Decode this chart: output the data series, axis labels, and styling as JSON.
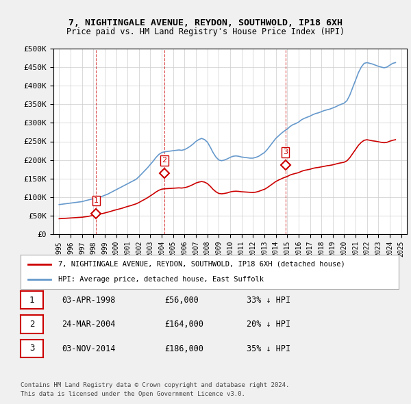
{
  "title1": "7, NIGHTINGALE AVENUE, REYDON, SOUTHWOLD, IP18 6XH",
  "title2": "Price paid vs. HM Land Registry's House Price Index (HPI)",
  "legend_label1": "7, NIGHTINGALE AVENUE, REYDON, SOUTHWOLD, IP18 6XH (detached house)",
  "legend_label2": "HPI: Average price, detached house, East Suffolk",
  "footer1": "Contains HM Land Registry data © Crown copyright and database right 2024.",
  "footer2": "This data is licensed under the Open Government Licence v3.0.",
  "sale_color": "#cc0000",
  "hpi_color": "#6699cc",
  "background_color": "#f0f0f0",
  "plot_bg_color": "#ffffff",
  "sales": [
    {
      "label": "1",
      "date": "03-APR-1998",
      "price": 56000,
      "x": 1998.25
    },
    {
      "label": "2",
      "date": "24-MAR-2004",
      "price": 164000,
      "x": 2004.23
    },
    {
      "label": "3",
      "date": "03-NOV-2014",
      "price": 186000,
      "x": 2014.84
    }
  ],
  "sale_annotations": [
    {
      "label": "1",
      "date": "03-APR-1998",
      "price": "£56,000",
      "pct": "33% ↓ HPI"
    },
    {
      "label": "2",
      "date": "24-MAR-2004",
      "price": "£164,000",
      "pct": "20% ↓ HPI"
    },
    {
      "label": "3",
      "date": "03-NOV-2014",
      "price": "£186,000",
      "pct": "35% ↓ HPI"
    }
  ],
  "ylim": [
    0,
    500000
  ],
  "yticks": [
    0,
    50000,
    100000,
    150000,
    200000,
    250000,
    300000,
    350000,
    400000,
    450000,
    500000
  ],
  "ytick_labels": [
    "£0",
    "£50K",
    "£100K",
    "£150K",
    "£200K",
    "£250K",
    "£300K",
    "£350K",
    "£400K",
    "£450K",
    "£500K"
  ],
  "xlim": [
    1994.5,
    2025.5
  ],
  "xticks": [
    1995,
    1996,
    1997,
    1998,
    1999,
    2000,
    2001,
    2002,
    2003,
    2004,
    2005,
    2006,
    2007,
    2008,
    2009,
    2010,
    2011,
    2012,
    2013,
    2014,
    2015,
    2016,
    2017,
    2018,
    2019,
    2020,
    2021,
    2022,
    2023,
    2024,
    2025
  ],
  "hpi_data": {
    "x": [
      1995,
      1995.25,
      1995.5,
      1995.75,
      1996,
      1996.25,
      1996.5,
      1996.75,
      1997,
      1997.25,
      1997.5,
      1997.75,
      1998,
      1998.25,
      1998.5,
      1998.75,
      1999,
      1999.25,
      1999.5,
      1999.75,
      2000,
      2000.25,
      2000.5,
      2000.75,
      2001,
      2001.25,
      2001.5,
      2001.75,
      2002,
      2002.25,
      2002.5,
      2002.75,
      2003,
      2003.25,
      2003.5,
      2003.75,
      2004,
      2004.25,
      2004.5,
      2004.75,
      2005,
      2005.25,
      2005.5,
      2005.75,
      2006,
      2006.25,
      2006.5,
      2006.75,
      2007,
      2007.25,
      2007.5,
      2007.75,
      2008,
      2008.25,
      2008.5,
      2008.75,
      2009,
      2009.25,
      2009.5,
      2009.75,
      2010,
      2010.25,
      2010.5,
      2010.75,
      2011,
      2011.25,
      2011.5,
      2011.75,
      2012,
      2012.25,
      2012.5,
      2012.75,
      2013,
      2013.25,
      2013.5,
      2013.75,
      2014,
      2014.25,
      2014.5,
      2014.75,
      2015,
      2015.25,
      2015.5,
      2015.75,
      2016,
      2016.25,
      2016.5,
      2016.75,
      2017,
      2017.25,
      2017.5,
      2017.75,
      2018,
      2018.25,
      2018.5,
      2018.75,
      2019,
      2019.25,
      2019.5,
      2019.75,
      2020,
      2020.25,
      2020.5,
      2020.75,
      2021,
      2021.25,
      2021.5,
      2021.75,
      2022,
      2022.25,
      2022.5,
      2022.75,
      2023,
      2023.25,
      2023.5,
      2023.75,
      2024,
      2024.25,
      2024.5
    ],
    "y": [
      80000,
      81000,
      82000,
      83000,
      84000,
      85000,
      86000,
      87000,
      88000,
      90000,
      92000,
      94000,
      96000,
      98000,
      100000,
      102000,
      105000,
      108000,
      112000,
      116000,
      120000,
      124000,
      128000,
      132000,
      136000,
      140000,
      144000,
      148000,
      155000,
      163000,
      171000,
      179000,
      188000,
      197000,
      207000,
      215000,
      220000,
      222000,
      223000,
      224000,
      225000,
      226000,
      227000,
      226000,
      228000,
      232000,
      237000,
      243000,
      250000,
      255000,
      258000,
      255000,
      248000,
      235000,
      220000,
      208000,
      200000,
      198000,
      200000,
      203000,
      207000,
      210000,
      211000,
      210000,
      208000,
      207000,
      206000,
      205000,
      205000,
      207000,
      210000,
      215000,
      220000,
      228000,
      238000,
      248000,
      258000,
      265000,
      272000,
      278000,
      283000,
      290000,
      295000,
      298000,
      302000,
      308000,
      312000,
      315000,
      318000,
      322000,
      325000,
      327000,
      330000,
      333000,
      335000,
      337000,
      340000,
      343000,
      347000,
      350000,
      353000,
      360000,
      375000,
      395000,
      415000,
      435000,
      450000,
      460000,
      462000,
      460000,
      458000,
      455000,
      452000,
      450000,
      448000,
      450000,
      455000,
      460000,
      462000
    ]
  },
  "sold_hpi_data": {
    "x": [
      1995,
      1995.25,
      1995.5,
      1995.75,
      1996,
      1996.25,
      1996.5,
      1996.75,
      1997,
      1997.25,
      1997.5,
      1997.75,
      1998,
      1998.25,
      1998.5,
      1998.75,
      1999,
      1999.25,
      1999.5,
      1999.75,
      2000,
      2000.25,
      2000.5,
      2000.75,
      2001,
      2001.25,
      2001.5,
      2001.75,
      2002,
      2002.25,
      2002.5,
      2002.75,
      2003,
      2003.25,
      2003.5,
      2003.75,
      2004,
      2004.25,
      2004.5,
      2004.75,
      2005,
      2005.25,
      2005.5,
      2005.75,
      2006,
      2006.25,
      2006.5,
      2006.75,
      2007,
      2007.25,
      2007.5,
      2007.75,
      2008,
      2008.25,
      2008.5,
      2008.75,
      2009,
      2009.25,
      2009.5,
      2009.75,
      2010,
      2010.25,
      2010.5,
      2010.75,
      2011,
      2011.25,
      2011.5,
      2011.75,
      2012,
      2012.25,
      2012.5,
      2012.75,
      2013,
      2013.25,
      2013.5,
      2013.75,
      2014,
      2014.25,
      2014.5,
      2014.75,
      2015,
      2015.25,
      2015.5,
      2015.75,
      2016,
      2016.25,
      2016.5,
      2016.75,
      2017,
      2017.25,
      2017.5,
      2017.75,
      2018,
      2018.25,
      2018.5,
      2018.75,
      2019,
      2019.25,
      2019.5,
      2019.75,
      2020,
      2020.25,
      2020.5,
      2020.75,
      2021,
      2021.25,
      2021.5,
      2021.75,
      2022,
      2022.25,
      2022.5,
      2022.75,
      2023,
      2023.25,
      2023.5,
      2023.75,
      2024,
      2024.25,
      2024.5
    ],
    "y": [
      42000,
      42500,
      43000,
      43500,
      44000,
      44500,
      45000,
      45500,
      46000,
      47000,
      48000,
      49500,
      51000,
      52500,
      54000,
      55500,
      57500,
      59500,
      61500,
      64000,
      66000,
      68000,
      70000,
      72500,
      75000,
      77000,
      79500,
      82000,
      85500,
      90000,
      94000,
      98500,
      103500,
      108500,
      114000,
      118500,
      121500,
      122500,
      123000,
      123500,
      124000,
      124500,
      125000,
      124500,
      125500,
      127500,
      130500,
      134000,
      138000,
      140500,
      142000,
      140500,
      136500,
      129500,
      121000,
      114500,
      110000,
      109000,
      110000,
      111500,
      114000,
      115500,
      116000,
      115500,
      114500,
      114000,
      113500,
      113000,
      112500,
      113500,
      115500,
      118500,
      121000,
      125500,
      131000,
      136500,
      142000,
      146000,
      149500,
      153000,
      155500,
      159500,
      162000,
      164000,
      166000,
      169500,
      172000,
      173500,
      175000,
      177500,
      179000,
      180000,
      181500,
      183000,
      184500,
      185500,
      187000,
      189000,
      191000,
      192500,
      194000,
      198000,
      206500,
      217500,
      228500,
      239500,
      247500,
      253000,
      254500,
      253000,
      251500,
      250500,
      249000,
      247500,
      246500,
      247500,
      250500,
      253000,
      254500
    ]
  }
}
